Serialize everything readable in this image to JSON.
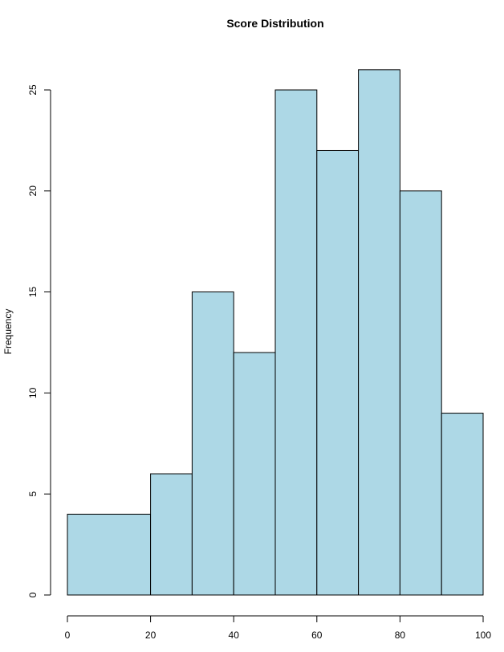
{
  "chart_data": {
    "type": "bar",
    "title": "Score Distribution",
    "xlabel": "",
    "ylabel": "Frequency",
    "bins": [
      [
        0,
        20
      ],
      [
        20,
        30
      ],
      [
        30,
        40
      ],
      [
        40,
        50
      ],
      [
        50,
        60
      ],
      [
        60,
        70
      ],
      [
        70,
        80
      ],
      [
        80,
        90
      ],
      [
        90,
        100
      ]
    ],
    "values": [
      4,
      6,
      15,
      12,
      25,
      22,
      26,
      20,
      9
    ],
    "xlim": [
      0,
      100
    ],
    "ylim": [
      0,
      25
    ],
    "xticks": [
      "0",
      "20",
      "40",
      "60",
      "80",
      "100"
    ],
    "xtick_values": [
      0,
      20,
      40,
      60,
      80,
      100
    ],
    "yticks": [
      "0",
      "5",
      "10",
      "15",
      "20",
      "25"
    ],
    "ytick_values": [
      0,
      5,
      10,
      15,
      20,
      25
    ],
    "bar_color": "#ADD8E6",
    "edge_color": "#000000",
    "grid": false
  }
}
